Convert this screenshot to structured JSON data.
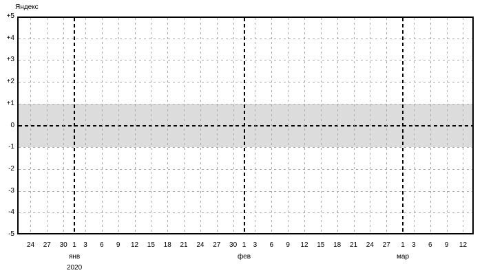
{
  "title": "Яндекс",
  "chart_data": {
    "type": "line",
    "title": "Яндекс",
    "series": [],
    "ylim": [
      -5,
      5
    ],
    "y_ticks": [
      {
        "label": "+5",
        "value": 5
      },
      {
        "label": "+4",
        "value": 4
      },
      {
        "label": "+3",
        "value": 3
      },
      {
        "label": "+2",
        "value": 2
      },
      {
        "label": "+1",
        "value": 1
      },
      {
        "label": "0",
        "value": 0
      },
      {
        "label": "-1",
        "value": -1
      },
      {
        "label": "-2",
        "value": -2
      },
      {
        "label": "-3",
        "value": -3
      },
      {
        "label": "-4",
        "value": -4
      },
      {
        "label": "-5",
        "value": -5
      }
    ],
    "x_range_days": [
      -2.45,
      80.95
    ],
    "x_ticks": [
      {
        "label": "24",
        "day": 0,
        "month_start": false
      },
      {
        "label": "27",
        "day": 3,
        "month_start": false
      },
      {
        "label": "30",
        "day": 6,
        "month_start": false
      },
      {
        "label": "1",
        "day": 8,
        "month_start": true
      },
      {
        "label": "3",
        "day": 10,
        "month_start": false
      },
      {
        "label": "6",
        "day": 13,
        "month_start": false
      },
      {
        "label": "9",
        "day": 16,
        "month_start": false
      },
      {
        "label": "12",
        "day": 19,
        "month_start": false
      },
      {
        "label": "15",
        "day": 22,
        "month_start": false
      },
      {
        "label": "18",
        "day": 25,
        "month_start": false
      },
      {
        "label": "21",
        "day": 28,
        "month_start": false
      },
      {
        "label": "24",
        "day": 31,
        "month_start": false
      },
      {
        "label": "27",
        "day": 34,
        "month_start": false
      },
      {
        "label": "30",
        "day": 37,
        "month_start": false
      },
      {
        "label": "1",
        "day": 39,
        "month_start": true
      },
      {
        "label": "3",
        "day": 41,
        "month_start": false
      },
      {
        "label": "6",
        "day": 44,
        "month_start": false
      },
      {
        "label": "9",
        "day": 47,
        "month_start": false
      },
      {
        "label": "12",
        "day": 50,
        "month_start": false
      },
      {
        "label": "15",
        "day": 53,
        "month_start": false
      },
      {
        "label": "18",
        "day": 56,
        "month_start": false
      },
      {
        "label": "21",
        "day": 59,
        "month_start": false
      },
      {
        "label": "24",
        "day": 62,
        "month_start": false
      },
      {
        "label": "27",
        "day": 65,
        "month_start": false
      },
      {
        "label": "1",
        "day": 68,
        "month_start": true
      },
      {
        "label": "3",
        "day": 70,
        "month_start": false
      },
      {
        "label": "6",
        "day": 73,
        "month_start": false
      },
      {
        "label": "9",
        "day": 76,
        "month_start": false
      },
      {
        "label": "12",
        "day": 79,
        "month_start": false
      }
    ],
    "month_labels": [
      {
        "text": "янв",
        "day": 8
      },
      {
        "text": "фев",
        "day": 39
      },
      {
        "text": "мар",
        "day": 68
      }
    ],
    "year_label": {
      "text": "2020",
      "day": 8
    },
    "zero_band": {
      "from": -1,
      "to": 1
    },
    "grid": true,
    "colors": {
      "background": "#ffffff",
      "band": "#dcdcdc",
      "grid": "#ababab",
      "zero_line": "#000000",
      "month_line": "#000000",
      "axis": "#000000",
      "text": "#000000"
    }
  }
}
